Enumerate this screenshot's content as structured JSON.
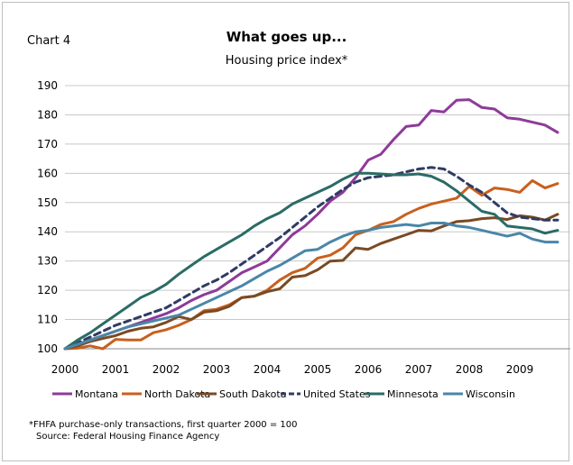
{
  "header": {
    "chart_label": "Chart 4",
    "title": "What goes up...",
    "subtitle": "Housing price index*"
  },
  "footnotes": {
    "line1": "*FHFA purchase-only transactions, first quarter 2000 = 100",
    "line2": "Source: Federal Housing Finance Agency"
  },
  "chart_data": {
    "type": "line",
    "title": "What goes up...",
    "subtitle": "Housing price index*",
    "xlabel": "",
    "ylabel": "",
    "xlim": [
      2000,
      2010
    ],
    "ylim": [
      100,
      190
    ],
    "x_ticks": [
      "2000",
      "2001",
      "2002",
      "2003",
      "2004",
      "2005",
      "2006",
      "2007",
      "2008",
      "2009"
    ],
    "y_ticks": [
      100,
      110,
      120,
      130,
      140,
      150,
      160,
      170,
      180,
      190
    ],
    "grid": "horizontal",
    "legend_position": "bottom",
    "x": [
      2000.0,
      2000.25,
      2000.5,
      2000.75,
      2001.0,
      2001.25,
      2001.5,
      2001.75,
      2002.0,
      2002.25,
      2002.5,
      2002.75,
      2003.0,
      2003.25,
      2003.5,
      2003.75,
      2004.0,
      2004.25,
      2004.5,
      2004.75,
      2005.0,
      2005.25,
      2005.5,
      2005.75,
      2006.0,
      2006.25,
      2006.5,
      2006.75,
      2007.0,
      2007.25,
      2007.5,
      2007.75,
      2008.0,
      2008.25,
      2008.5,
      2008.75,
      2009.0,
      2009.25,
      2009.5,
      2009.75
    ],
    "series": [
      {
        "name": "Montana",
        "color": "#8e3a99",
        "dash": false,
        "values": [
          100,
          101.5,
          103,
          104.5,
          106,
          107.5,
          109,
          110.5,
          112,
          114,
          116.5,
          118.5,
          120,
          123,
          126,
          128,
          130,
          134.5,
          139,
          142,
          146,
          150.5,
          153.5,
          158.5,
          164.5,
          166.5,
          171.5,
          176,
          176.5,
          181.5,
          181,
          185,
          185.2,
          182.5,
          182,
          179,
          178.5,
          177.5,
          176.5,
          174
        ]
      },
      {
        "name": "North Dakota",
        "color": "#c8601e",
        "dash": false,
        "values": [
          100,
          100.2,
          101,
          100,
          103.2,
          103,
          103,
          105.5,
          106.5,
          108,
          110,
          113,
          113.5,
          115,
          117.5,
          118,
          120,
          123.5,
          126,
          127.5,
          131,
          132,
          134.5,
          139,
          140.5,
          142.5,
          143.5,
          146,
          148,
          149.5,
          150.5,
          151.5,
          155.5,
          152.5,
          155,
          154.5,
          153.5,
          157.5,
          155,
          156.5
        ]
      },
      {
        "name": "South Dakota",
        "color": "#7a4a23",
        "dash": false,
        "values": [
          100,
          101,
          102.5,
          103.5,
          104.5,
          106,
          107,
          107.5,
          109,
          111,
          110,
          112.5,
          113,
          114.5,
          117.5,
          118,
          119.5,
          120.5,
          124.5,
          125,
          127,
          130,
          130.2,
          134.5,
          134,
          136,
          137.5,
          139,
          140.5,
          140.3,
          142,
          143.5,
          143.8,
          144.5,
          144.8,
          144.2,
          145.5,
          145,
          144,
          146
        ]
      },
      {
        "name": "United States",
        "color": "#2f3b63",
        "dash": true,
        "values": [
          100,
          102,
          104,
          106,
          108,
          109.5,
          111,
          112.5,
          114,
          116.5,
          119,
          121.5,
          123.5,
          126,
          129,
          132,
          135,
          138,
          141.5,
          145,
          148.5,
          151.5,
          154.5,
          157,
          158.5,
          159,
          159.5,
          160.5,
          161.5,
          162,
          161.5,
          159,
          156,
          153.5,
          150,
          146.5,
          145,
          144.5,
          144,
          144
        ]
      },
      {
        "name": "Minnesota",
        "color": "#2b6b66",
        "dash": false,
        "values": [
          100,
          103,
          105.5,
          108.5,
          111.5,
          114.5,
          117.5,
          119.5,
          122,
          125.5,
          128.5,
          131.5,
          134,
          136.5,
          139,
          142,
          144.5,
          146.5,
          149.5,
          151.5,
          153.5,
          155.5,
          158,
          160,
          160,
          159.8,
          159.5,
          159.5,
          159.8,
          159,
          157,
          154,
          150.5,
          147,
          146,
          142,
          141.5,
          141,
          139.5,
          140.5
        ]
      },
      {
        "name": "Wisconsin",
        "color": "#4a86a8",
        "dash": false,
        "values": [
          100,
          101.5,
          103,
          104.5,
          106,
          107.5,
          108.5,
          109.5,
          110.5,
          111.5,
          113.5,
          115.5,
          117.5,
          119.5,
          121.5,
          124,
          126.5,
          128.5,
          131,
          133.5,
          134,
          136.5,
          138.5,
          140,
          140.5,
          141.5,
          142,
          142.5,
          142,
          143,
          143,
          142,
          141.5,
          140.5,
          139.5,
          138.5,
          139.5,
          137.5,
          136.5,
          136.5
        ]
      }
    ]
  }
}
